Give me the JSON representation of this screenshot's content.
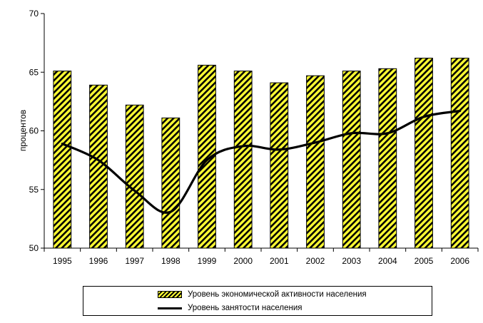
{
  "chart_data": {
    "type": "bar",
    "categories": [
      "1995",
      "1996",
      "1997",
      "1998",
      "1999",
      "2000",
      "2001",
      "2002",
      "2003",
      "2004",
      "2005",
      "2006"
    ],
    "series": [
      {
        "name": "Уровень экономической активности населения",
        "kind": "bar",
        "pattern": "diagonal-hatch",
        "color": "#ffff33",
        "values": [
          65.1,
          63.9,
          62.2,
          61.1,
          65.6,
          65.1,
          64.1,
          64.7,
          65.1,
          65.3,
          66.2,
          66.2
        ]
      },
      {
        "name": "Уровень занятости населения",
        "kind": "line",
        "color": "#000000",
        "values": [
          58.9,
          57.5,
          54.9,
          53.1,
          57.5,
          58.7,
          58.4,
          59.0,
          59.8,
          59.8,
          61.2,
          61.7
        ]
      }
    ],
    "ylabel": "процентов",
    "xlabel": "",
    "ylim": [
      50,
      70
    ],
    "yticks": [
      "50",
      "55",
      "60",
      "65",
      "70"
    ],
    "grid": false,
    "legend_position": "bottom"
  }
}
